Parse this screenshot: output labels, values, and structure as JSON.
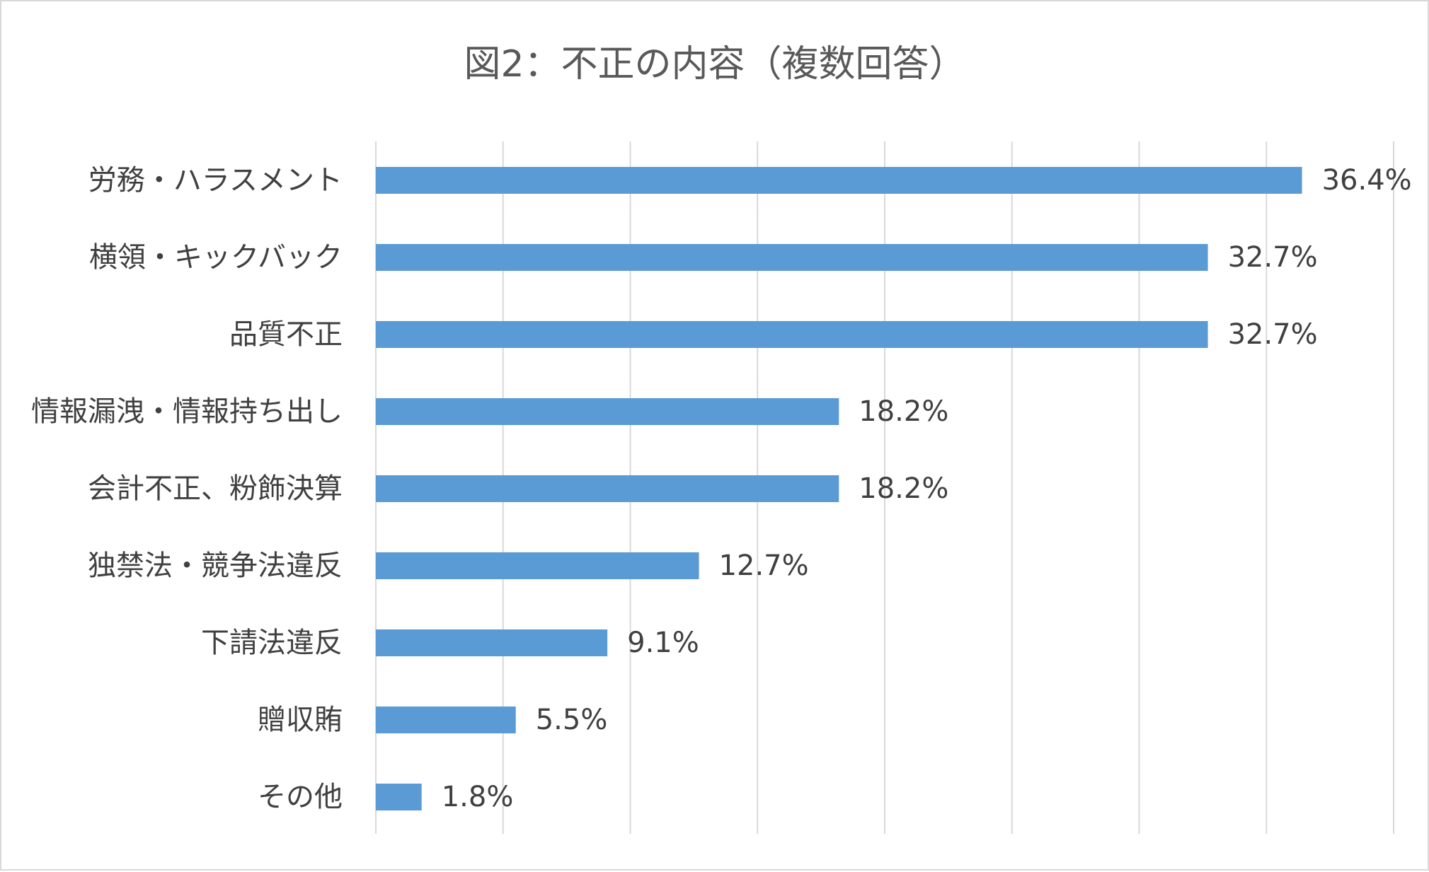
{
  "chart_data": {
    "type": "bar",
    "orientation": "horizontal",
    "title": "図2：不正の内容（複数回答）",
    "categories": [
      "労務・ハラスメント",
      "横領・キックバック",
      "品質不正",
      "情報漏洩・情報持ち出し",
      "会計不正、粉飾決算",
      "独禁法・競争法違反",
      "下請法違反",
      "贈収賄",
      "その他"
    ],
    "values": [
      36.4,
      32.7,
      32.7,
      18.2,
      18.2,
      12.7,
      9.1,
      5.5,
      1.8
    ],
    "value_labels": [
      "36.4%",
      "32.7%",
      "32.7%",
      "18.2%",
      "18.2%",
      "12.7%",
      "9.1%",
      "5.5%",
      "1.8%"
    ],
    "xlim": [
      0,
      40
    ],
    "x_gridlines": [
      0,
      5,
      10,
      15,
      20,
      25,
      30,
      35,
      40
    ],
    "grid": true,
    "bar_color": "#5b9bd5",
    "grid_color": "#d9d9d9",
    "text_color": "#404040",
    "title_color": "#595959"
  }
}
